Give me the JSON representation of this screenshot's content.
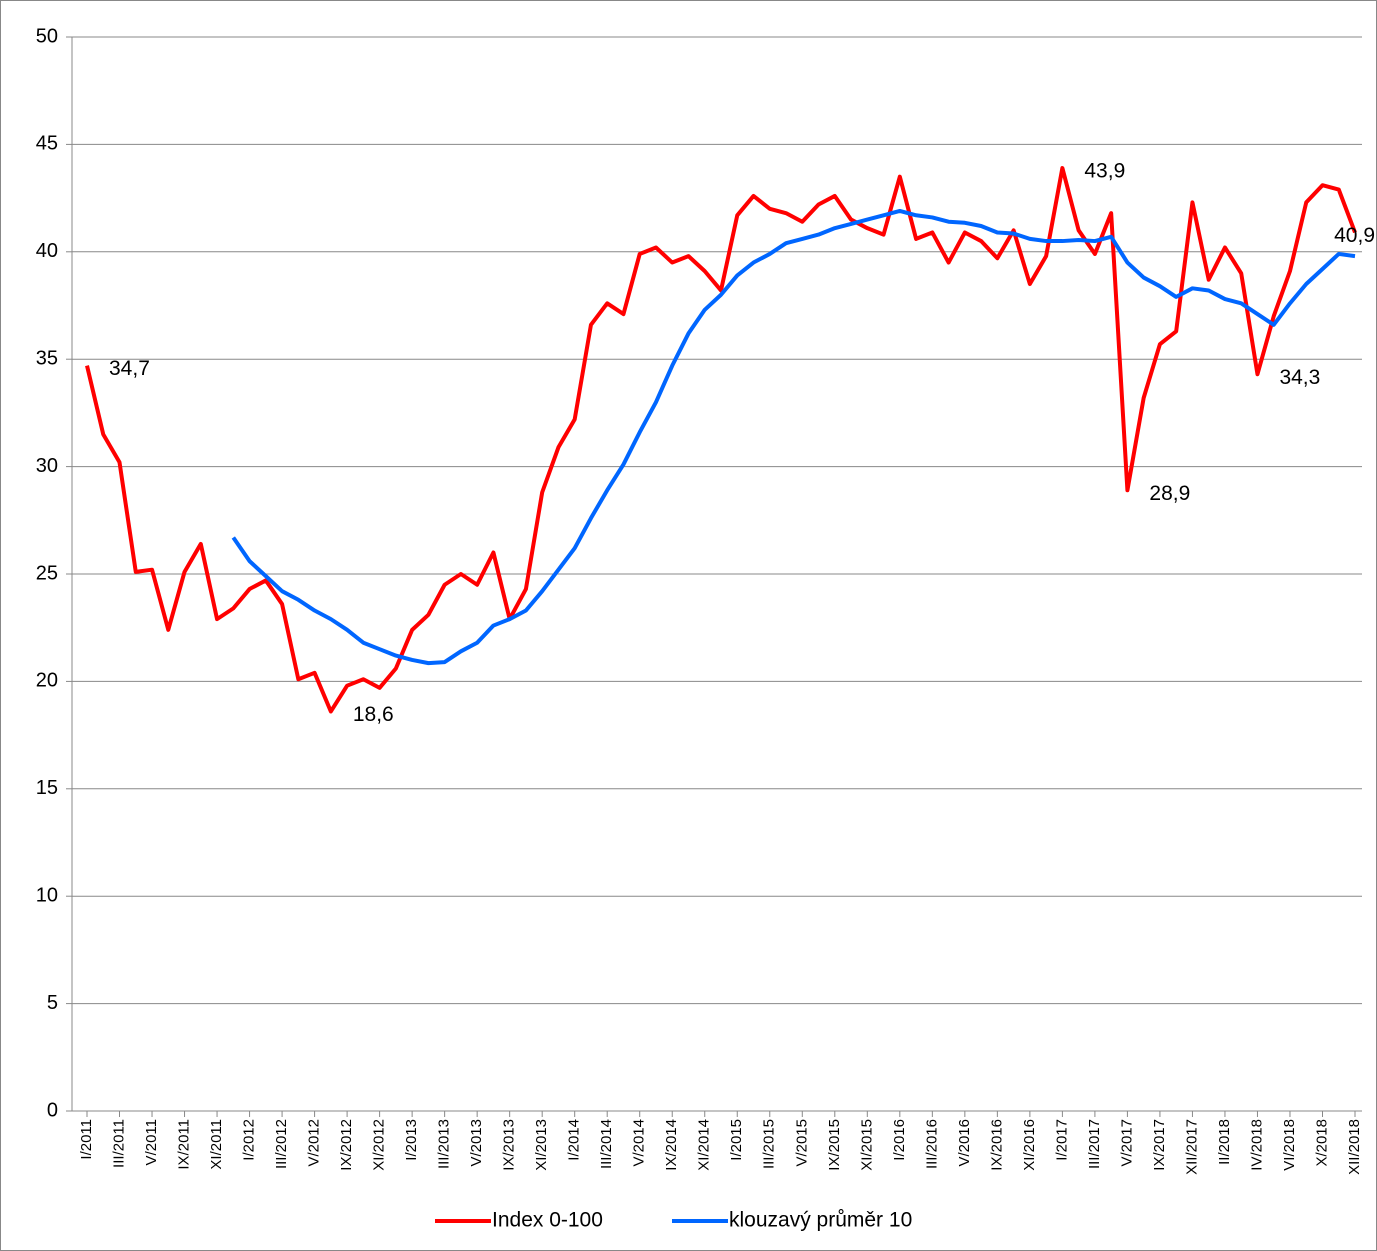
{
  "chart_data": {
    "type": "line",
    "categories": [
      "I/2011",
      null,
      "III/2011",
      null,
      "V/2011",
      null,
      "IX/2011",
      null,
      "XI/2011",
      null,
      "I/2012",
      null,
      "III/2012",
      null,
      "V/2012",
      null,
      "IX/2012",
      null,
      "XI/2012",
      null,
      "I/2013",
      null,
      "III/2013",
      null,
      "V/2013",
      null,
      "IX/2013",
      null,
      "XI/2013",
      null,
      "I/2014",
      null,
      "III/2014",
      null,
      "V/2014",
      null,
      "IX/2014",
      null,
      "XI/2014",
      null,
      "I/2015",
      null,
      "III/2015",
      null,
      "V/2015",
      null,
      "IX/2015",
      null,
      "XI/2015",
      null,
      "I/2016",
      null,
      "III/2016",
      null,
      "V/2016",
      null,
      "IX/2016",
      null,
      "XI/2016",
      null,
      "I/2017",
      null,
      "III/2017",
      null,
      "V/2017",
      null,
      "IX/2017",
      null,
      "XII/2017",
      null,
      "II/2018",
      null,
      "IV/2018",
      null,
      "VI/2018",
      null,
      "X/2018",
      null,
      "XII/2018"
    ],
    "series": [
      {
        "name": "Index 0-100",
        "color": "#ff0000",
        "values": [
          34.7,
          31.5,
          30.2,
          25.1,
          25.2,
          22.4,
          25.1,
          26.4,
          22.9,
          23.4,
          24.3,
          24.7,
          23.6,
          20.1,
          20.4,
          18.6,
          19.8,
          20.1,
          19.7,
          20.6,
          22.4,
          23.1,
          24.5,
          25.0,
          24.5,
          26.0,
          22.9,
          24.3,
          28.8,
          30.9,
          32.2,
          36.6,
          37.6,
          37.1,
          39.9,
          40.2,
          39.5,
          39.8,
          39.1,
          38.2,
          41.7,
          42.6,
          42.0,
          41.8,
          41.4,
          42.2,
          42.6,
          41.5,
          41.1,
          40.8,
          43.5,
          40.6,
          40.9,
          39.5,
          40.9,
          40.5,
          39.7,
          41.0,
          38.5,
          39.8,
          43.9,
          41.0,
          39.9,
          41.8,
          28.9,
          33.2,
          35.7,
          36.3,
          42.3,
          38.7,
          40.2,
          39.0,
          34.3,
          37.0,
          39.1,
          42.3,
          43.1,
          42.9,
          40.9
        ],
        "value_labels": [
          "34,7",
          null,
          null,
          null,
          null,
          null,
          null,
          null,
          null,
          null,
          null,
          null,
          null,
          null,
          null,
          "18,6",
          null,
          null,
          null,
          null,
          null,
          null,
          null,
          null,
          null,
          null,
          null,
          null,
          null,
          null,
          null,
          null,
          null,
          null,
          null,
          null,
          null,
          null,
          null,
          null,
          null,
          null,
          null,
          null,
          null,
          null,
          null,
          null,
          null,
          null,
          null,
          null,
          null,
          null,
          null,
          null,
          null,
          null,
          null,
          null,
          "43,9",
          null,
          null,
          null,
          "28,9",
          null,
          null,
          null,
          null,
          null,
          null,
          null,
          "34,3",
          null,
          null,
          null,
          null,
          null,
          "40,9"
        ]
      },
      {
        "name": "klouzavý průměr 10",
        "color": "#0066ff",
        "values": [
          null,
          null,
          null,
          null,
          null,
          null,
          null,
          null,
          null,
          26.7,
          25.6,
          24.9,
          24.2,
          23.8,
          23.3,
          22.9,
          22.4,
          21.8,
          21.5,
          21.2,
          21.0,
          20.85,
          20.9,
          21.4,
          21.8,
          22.6,
          22.9,
          23.3,
          24.2,
          25.2,
          26.2,
          27.6,
          28.9,
          30.1,
          31.6,
          33.0,
          34.7,
          36.2,
          37.3,
          38.0,
          38.9,
          39.5,
          39.9,
          40.4,
          40.6,
          40.8,
          41.1,
          41.3,
          41.5,
          41.7,
          41.9,
          41.7,
          41.6,
          41.4,
          41.35,
          41.2,
          40.9,
          40.85,
          40.6,
          40.5,
          40.5,
          40.55,
          40.5,
          40.7,
          39.5,
          38.8,
          38.4,
          37.9,
          38.3,
          38.2,
          37.8,
          37.6,
          37.1,
          36.6,
          37.6,
          38.5,
          39.2,
          39.9,
          39.8
        ]
      }
    ],
    "ylim": [
      0,
      50
    ],
    "yticks": [
      0,
      5,
      10,
      15,
      20,
      25,
      30,
      35,
      40,
      45,
      50
    ],
    "grid": true,
    "legend": "bottom"
  }
}
